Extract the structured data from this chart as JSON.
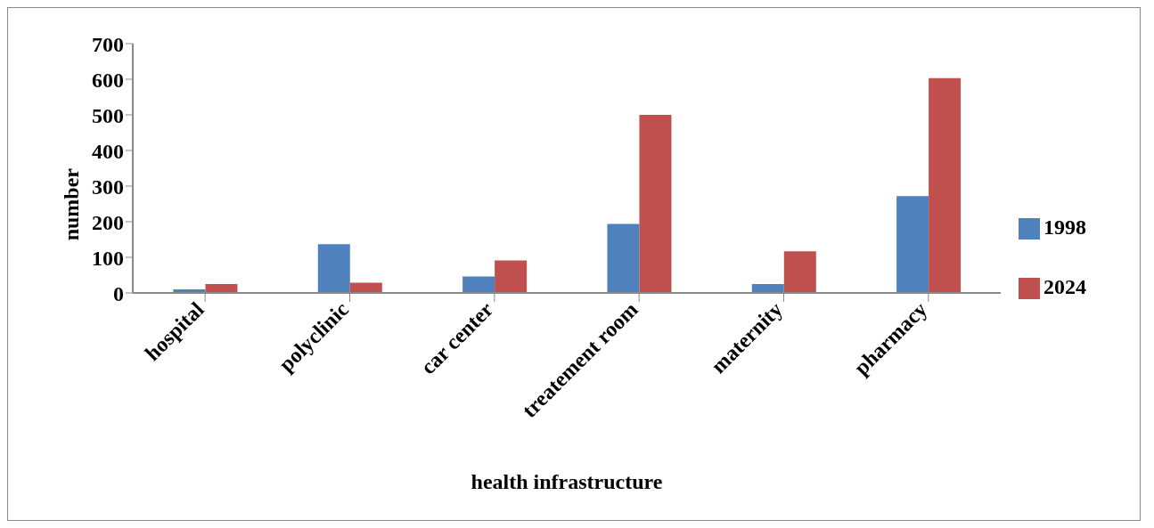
{
  "chart_data": {
    "type": "bar",
    "xlabel": "health infrastructure",
    "ylabel": "number",
    "categories": [
      "hospital",
      "polyclinic",
      "car center",
      "treatement room",
      "maternity",
      "pharmacy"
    ],
    "series": [
      {
        "name": "1998",
        "color": "#4f81bd",
        "values": [
          10,
          137,
          46,
          194,
          25,
          272
        ]
      },
      {
        "name": "2024",
        "color": "#c0504d",
        "values": [
          25,
          29,
          91,
          500,
          117,
          603
        ]
      }
    ],
    "ylim": [
      0,
      700
    ],
    "yticks": [
      0,
      100,
      200,
      300,
      400,
      500,
      600,
      700
    ],
    "grid": false,
    "legend": "right"
  }
}
